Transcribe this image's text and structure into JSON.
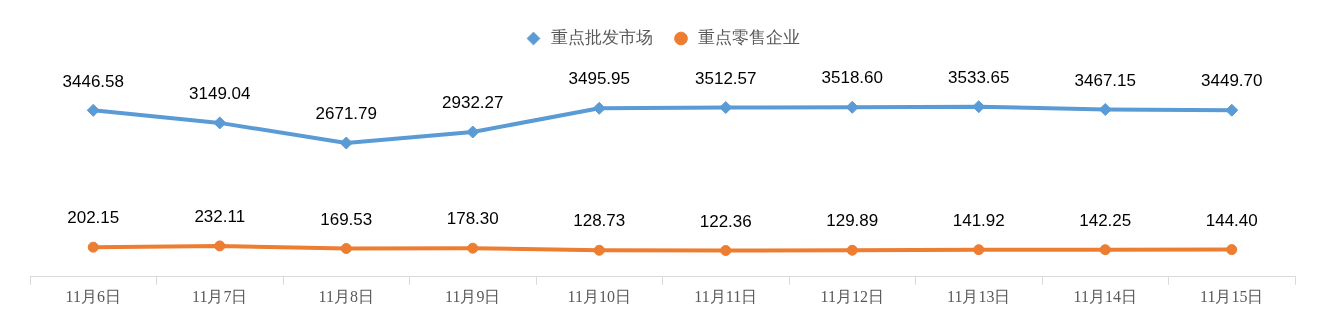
{
  "chart_data": {
    "type": "line",
    "categories": [
      "11月6日",
      "11月7日",
      "11月8日",
      "11月9日",
      "11月10日",
      "11月11日",
      "11月12日",
      "11月13日",
      "11月14日",
      "11月15日"
    ],
    "series": [
      {
        "name": "重点批发市场",
        "color": "#5b9bd5",
        "marker": "diamond",
        "values": [
          3446.58,
          3149.04,
          2671.79,
          2932.27,
          3495.95,
          3512.57,
          3518.6,
          3533.65,
          3467.15,
          3449.7
        ],
        "value_labels": [
          "3446.58",
          "3149.04",
          "2671.79",
          "2932.27",
          "3495.95",
          "3512.57",
          "3518.60",
          "3533.65",
          "3467.15",
          "3449.70"
        ]
      },
      {
        "name": "重点零售企业",
        "color": "#ed7d31",
        "marker": "circle",
        "values": [
          202.15,
          232.11,
          169.53,
          178.3,
          128.73,
          122.36,
          129.89,
          141.92,
          142.25,
          144.4
        ],
        "value_labels": [
          "202.15",
          "232.11",
          "169.53",
          "178.30",
          "128.73",
          "122.36",
          "129.89",
          "141.92",
          "142.25",
          "144.40"
        ]
      }
    ],
    "tick_labels": "x",
    "grid": false,
    "legend": "top",
    "line_style": "solid"
  }
}
